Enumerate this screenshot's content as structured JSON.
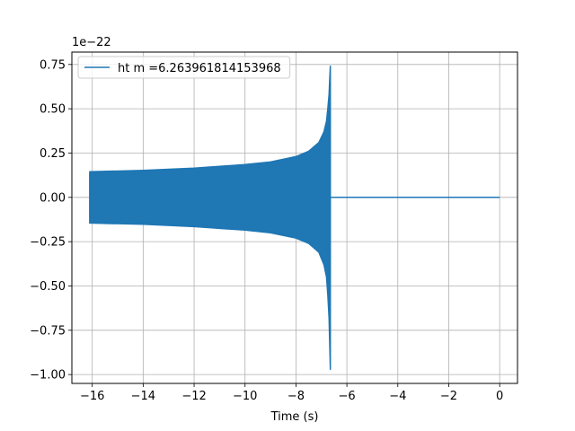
{
  "chart_data": {
    "type": "line",
    "title": "",
    "xlabel": "Time (s)",
    "ylabel": "",
    "y_offset_label": "1e−22",
    "xlim": [
      -16.8,
      0.7
    ],
    "ylim": [
      -1.05,
      0.82
    ],
    "grid": true,
    "legend": {
      "placement": "top-left",
      "entries": [
        "ht m =6.263961814153968"
      ]
    },
    "x_ticks": [
      {
        "value": -16,
        "label": "−16"
      },
      {
        "value": -14,
        "label": "−14"
      },
      {
        "value": -12,
        "label": "−12"
      },
      {
        "value": -10,
        "label": "−10"
      },
      {
        "value": -8,
        "label": "−8"
      },
      {
        "value": -6,
        "label": "−6"
      },
      {
        "value": -4,
        "label": "−4"
      },
      {
        "value": -2,
        "label": "−2"
      },
      {
        "value": 0,
        "label": "0"
      }
    ],
    "y_ticks": [
      {
        "value": 0.75,
        "label": "0.75"
      },
      {
        "value": 0.5,
        "label": "0.50"
      },
      {
        "value": 0.25,
        "label": "0.25"
      },
      {
        "value": 0.0,
        "label": "0.00"
      },
      {
        "value": -0.25,
        "label": "−0.25"
      },
      {
        "value": -0.5,
        "label": "−0.50"
      },
      {
        "value": -0.75,
        "label": "−0.75"
      },
      {
        "value": -1.0,
        "label": "−1.00"
      }
    ],
    "series": [
      {
        "name": "ht m =6.263961814153968",
        "color": "#1f77b4",
        "kind": "oscillating-envelope",
        "envelope_upper": [
          [
            -16.1,
            0.145
          ],
          [
            -14,
            0.152
          ],
          [
            -12,
            0.165
          ],
          [
            -10,
            0.185
          ],
          [
            -9,
            0.2
          ],
          [
            -8,
            0.23
          ],
          [
            -7.5,
            0.26
          ],
          [
            -7.1,
            0.31
          ],
          [
            -6.9,
            0.37
          ],
          [
            -6.8,
            0.43
          ],
          [
            -6.75,
            0.5
          ],
          [
            -6.7,
            0.58
          ],
          [
            -6.67,
            0.68
          ],
          [
            -6.65,
            0.74
          ]
        ],
        "envelope_lower": [
          [
            -16.1,
            -0.145
          ],
          [
            -14,
            -0.152
          ],
          [
            -12,
            -0.165
          ],
          [
            -10,
            -0.185
          ],
          [
            -9,
            -0.2
          ],
          [
            -8,
            -0.23
          ],
          [
            -7.5,
            -0.26
          ],
          [
            -7.1,
            -0.31
          ],
          [
            -6.9,
            -0.38
          ],
          [
            -6.8,
            -0.45
          ],
          [
            -6.75,
            -0.55
          ],
          [
            -6.7,
            -0.68
          ],
          [
            -6.67,
            -0.85
          ],
          [
            -6.65,
            -0.97
          ]
        ],
        "flat_segment": [
          [
            -6.6,
            0.0
          ],
          [
            0.0,
            0.0
          ]
        ]
      }
    ]
  }
}
